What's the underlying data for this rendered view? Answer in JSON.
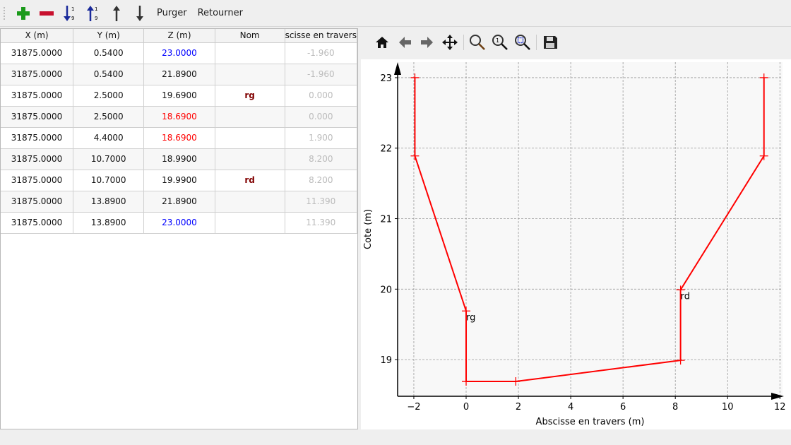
{
  "toolbar": {
    "items": [
      {
        "name": "add-icon"
      },
      {
        "name": "remove-icon"
      },
      {
        "name": "sort-descending-icon"
      },
      {
        "name": "sort-ascending-icon"
      },
      {
        "name": "move-up-icon"
      },
      {
        "name": "move-down-icon"
      }
    ],
    "purge_label": "Purger",
    "reverse_label": "Retourner"
  },
  "table": {
    "headers": [
      "X (m)",
      "Y (m)",
      "Z (m)",
      "Nom",
      "scisse en travers"
    ],
    "rows": [
      {
        "x": "31875.0000",
        "y": "0.5400",
        "z": "23.0000",
        "z_color": "#0000ff",
        "nom": "",
        "abs": "-1.960"
      },
      {
        "x": "31875.0000",
        "y": "0.5400",
        "z": "21.8900",
        "z_color": "#111111",
        "nom": "",
        "abs": "-1.960"
      },
      {
        "x": "31875.0000",
        "y": "2.5000",
        "z": "19.6900",
        "z_color": "#111111",
        "nom": "rg",
        "abs": "0.000"
      },
      {
        "x": "31875.0000",
        "y": "2.5000",
        "z": "18.6900",
        "z_color": "#ff0000",
        "nom": "",
        "abs": "0.000"
      },
      {
        "x": "31875.0000",
        "y": "4.4000",
        "z": "18.6900",
        "z_color": "#ff0000",
        "nom": "",
        "abs": "1.900"
      },
      {
        "x": "31875.0000",
        "y": "10.7000",
        "z": "18.9900",
        "z_color": "#111111",
        "nom": "",
        "abs": "8.200"
      },
      {
        "x": "31875.0000",
        "y": "10.7000",
        "z": "19.9900",
        "z_color": "#111111",
        "nom": "rd",
        "abs": "8.200"
      },
      {
        "x": "31875.0000",
        "y": "13.8900",
        "z": "21.8900",
        "z_color": "#111111",
        "nom": "",
        "abs": "11.390"
      },
      {
        "x": "31875.0000",
        "y": "13.8900",
        "z": "23.0000",
        "z_color": "#0000ff",
        "nom": "",
        "abs": "11.390"
      }
    ]
  },
  "plot_toolbar": [
    "home-icon",
    "back-icon",
    "forward-icon",
    "pan-icon",
    "zoom-icon",
    "zoom-reset-icon",
    "zoom-fit-icon",
    "save-icon"
  ],
  "chart_data": {
    "type": "line",
    "xlabel": "Abscisse en travers (m)",
    "ylabel": "Cote (m)",
    "xlim": [
      -2.62,
      12.1
    ],
    "ylim": [
      18.48,
      23.22
    ],
    "xticks": [
      -2,
      0,
      2,
      4,
      6,
      8,
      10,
      12
    ],
    "xtick_labels": [
      "−2",
      "0",
      "2",
      "4",
      "6",
      "8",
      "10",
      "12"
    ],
    "yticks": [
      19,
      20,
      21,
      22,
      23
    ],
    "ytick_labels": [
      "19",
      "20",
      "21",
      "22",
      "23"
    ],
    "grid": true,
    "color": "#ff0000",
    "marker": "+",
    "x": [
      -1.96,
      -1.96,
      0,
      0,
      1.9,
      8.2,
      8.2,
      11.39,
      11.39
    ],
    "y": [
      23,
      21.89,
      19.69,
      18.69,
      18.69,
      18.99,
      19.99,
      21.89,
      23
    ],
    "annotations": [
      {
        "text": "rg",
        "x": 0,
        "y": 19.69
      },
      {
        "text": "rd",
        "x": 8.2,
        "y": 19.99
      }
    ]
  }
}
